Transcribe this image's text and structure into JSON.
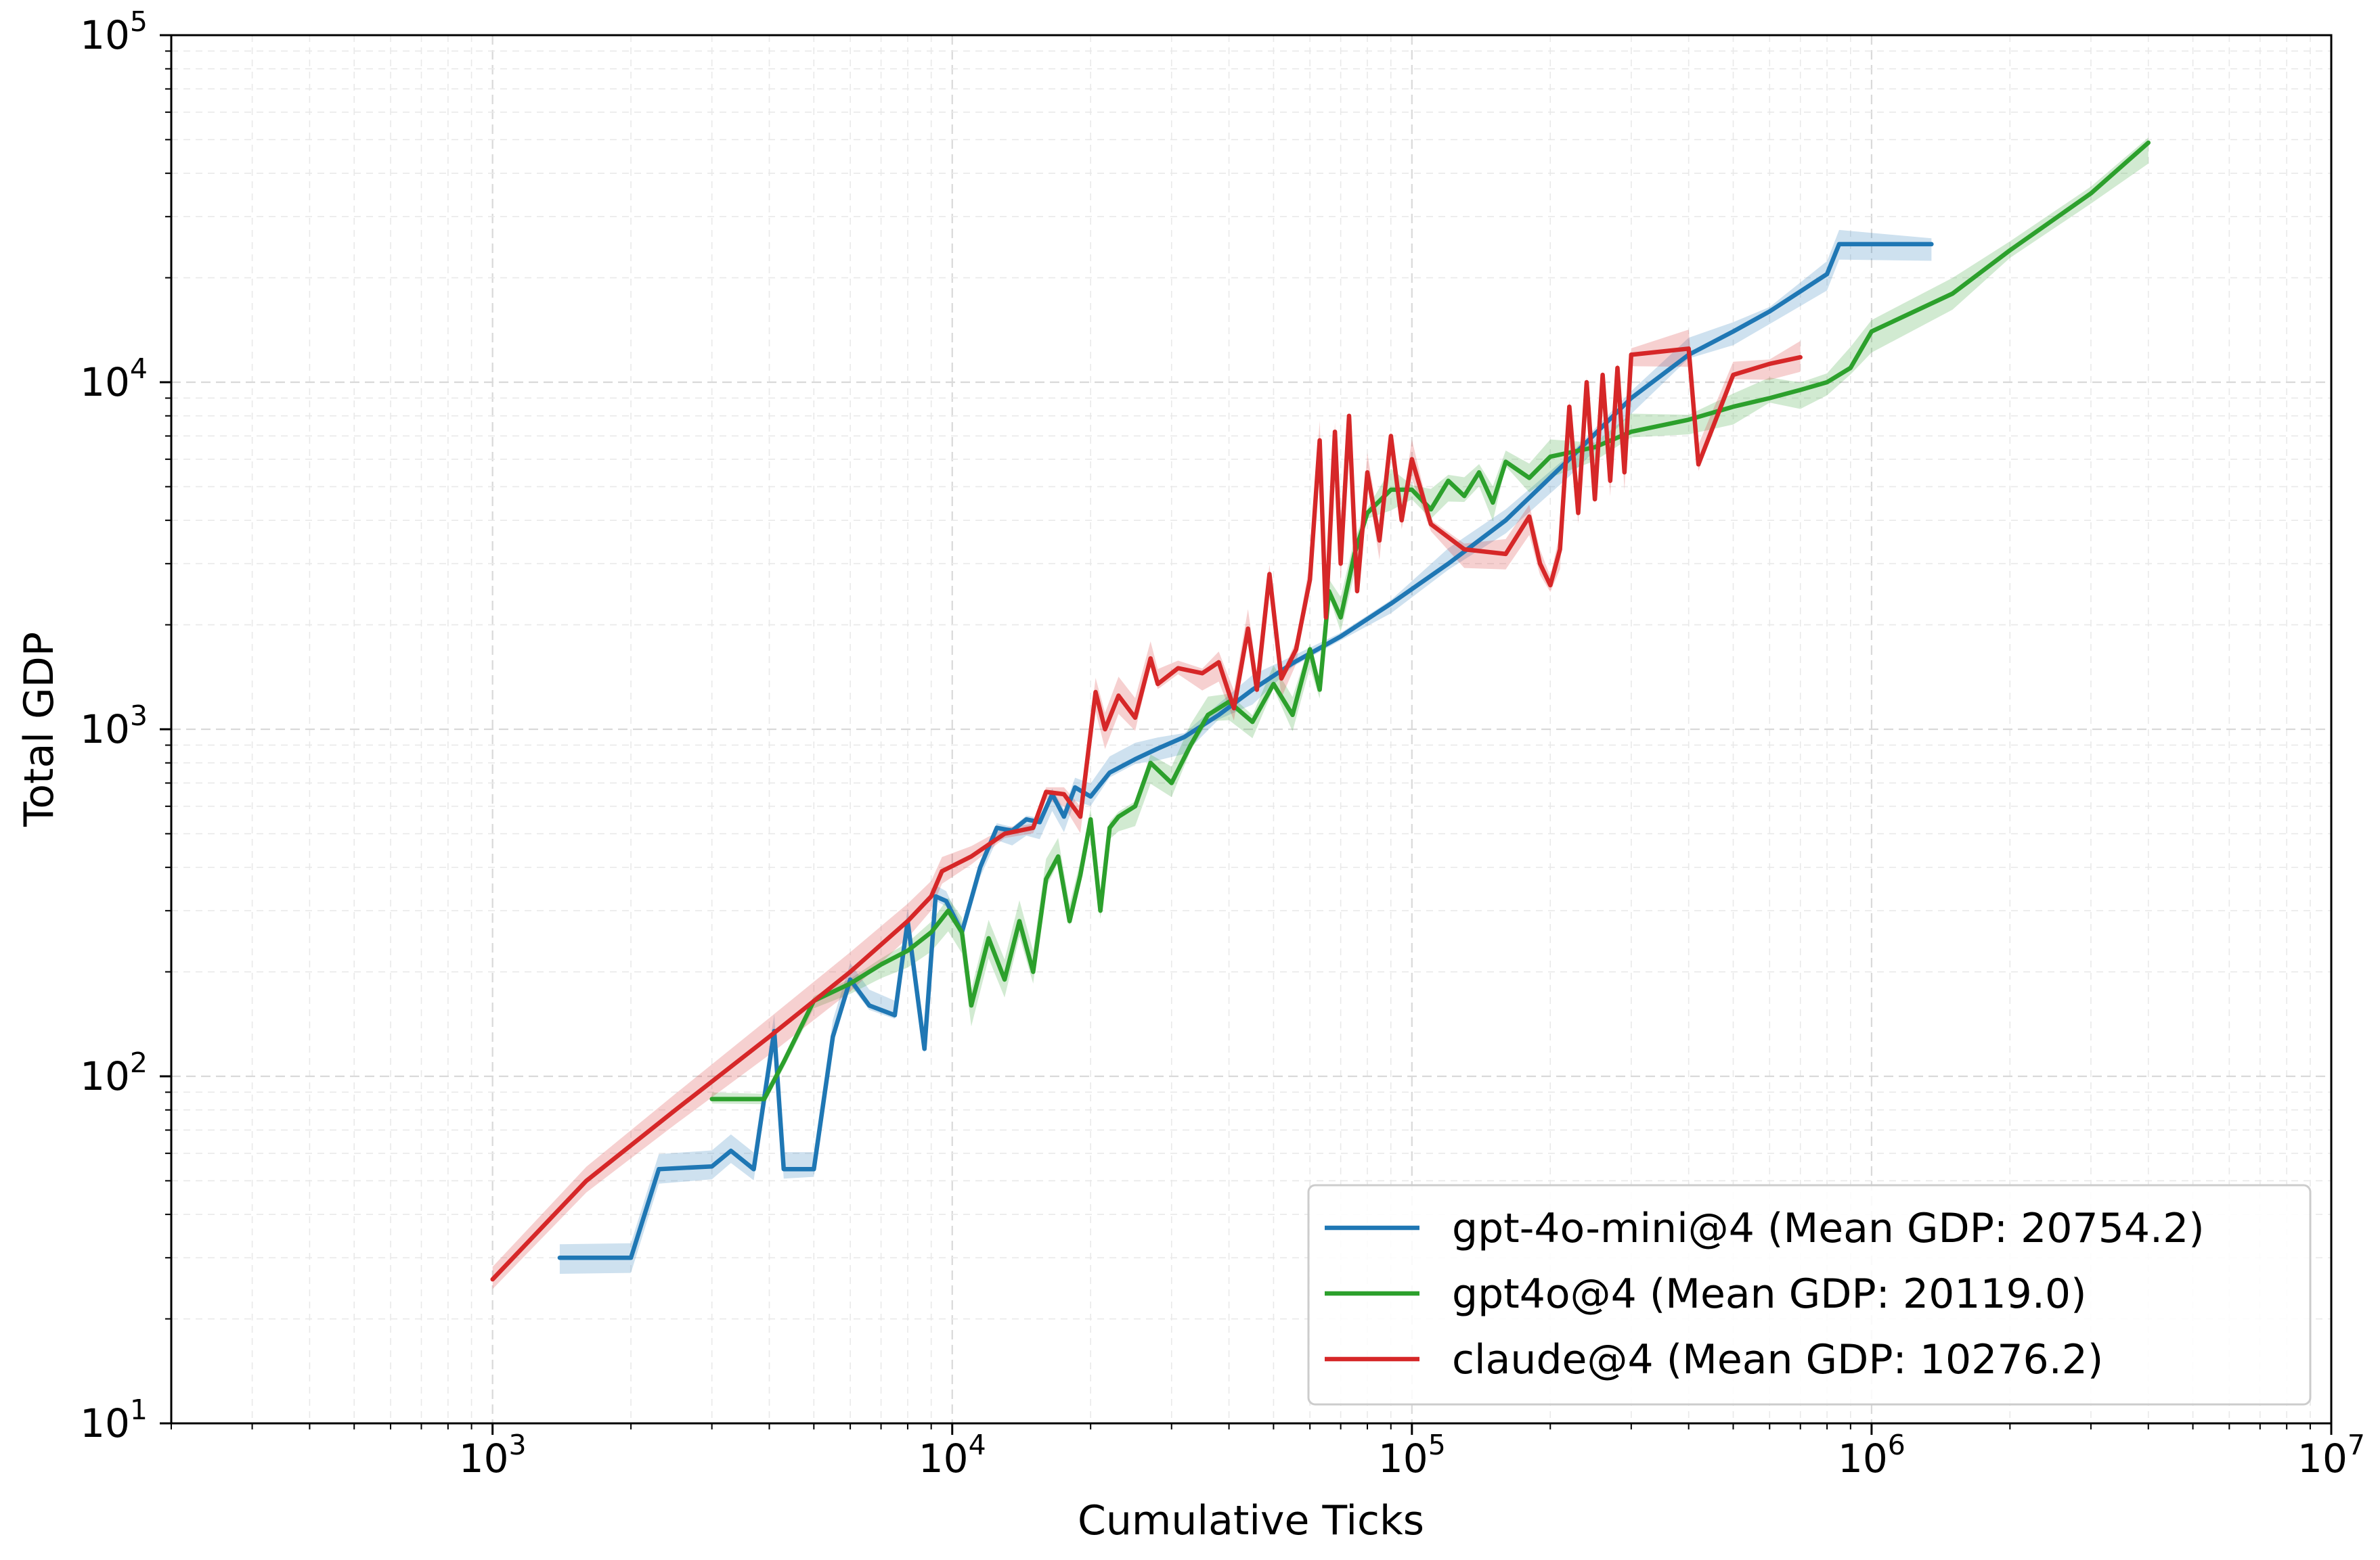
{
  "chart_data": {
    "type": "line",
    "title": "",
    "xlabel": "Cumulative Ticks",
    "ylabel": "Total GDP",
    "xscale": "log",
    "yscale": "log",
    "xlim": [
      200,
      10000000
    ],
    "ylim": [
      10,
      100000
    ],
    "x_ticks": [
      {
        "value": 1000,
        "base": "10",
        "exp": "3"
      },
      {
        "value": 10000,
        "base": "10",
        "exp": "4"
      },
      {
        "value": 100000,
        "base": "10",
        "exp": "5"
      },
      {
        "value": 1000000,
        "base": "10",
        "exp": "6"
      },
      {
        "value": 10000000,
        "base": "10",
        "exp": "7"
      }
    ],
    "y_ticks": [
      {
        "value": 10,
        "base": "10",
        "exp": "1"
      },
      {
        "value": 100,
        "base": "10",
        "exp": "2"
      },
      {
        "value": 1000,
        "base": "10",
        "exp": "3"
      },
      {
        "value": 10000,
        "base": "10",
        "exp": "4"
      },
      {
        "value": 100000,
        "base": "10",
        "exp": "5"
      }
    ],
    "grid": true,
    "legend": {
      "position": "bottom-right"
    },
    "series": [
      {
        "name": "gpt-4o-mini@4 (Mean GDP: 20754.2)",
        "color": "#1f77b4",
        "band_width": 0.12,
        "points": [
          [
            1400,
            30
          ],
          [
            2000,
            30
          ],
          [
            2300,
            54
          ],
          [
            3000,
            55
          ],
          [
            3300,
            61
          ],
          [
            3700,
            54
          ],
          [
            4100,
            135
          ],
          [
            4300,
            54
          ],
          [
            5000,
            54
          ],
          [
            5500,
            130
          ],
          [
            6000,
            190
          ],
          [
            6600,
            160
          ],
          [
            7500,
            150
          ],
          [
            8000,
            280
          ],
          [
            8700,
            120
          ],
          [
            9200,
            330
          ],
          [
            9700,
            320
          ],
          [
            10500,
            260
          ],
          [
            11500,
            400
          ],
          [
            12500,
            520
          ],
          [
            13500,
            510
          ],
          [
            14500,
            550
          ],
          [
            15500,
            540
          ],
          [
            16500,
            650
          ],
          [
            17500,
            560
          ],
          [
            18500,
            680
          ],
          [
            20000,
            640
          ],
          [
            22000,
            750
          ],
          [
            25000,
            820
          ],
          [
            28000,
            880
          ],
          [
            32000,
            950
          ],
          [
            38000,
            1100
          ],
          [
            45000,
            1300
          ],
          [
            55000,
            1550
          ],
          [
            70000,
            1850
          ],
          [
            90000,
            2300
          ],
          [
            120000,
            3000
          ],
          [
            160000,
            4000
          ],
          [
            220000,
            6000
          ],
          [
            300000,
            9000
          ],
          [
            400000,
            12000
          ],
          [
            500000,
            14000
          ],
          [
            600000,
            16000
          ],
          [
            800000,
            20500
          ],
          [
            850000,
            25000
          ],
          [
            1350000,
            25000
          ]
        ]
      },
      {
        "name": "gpt4o@4 (Mean GDP: 20119.0)",
        "color": "#2ca02c",
        "band_width": 0.15,
        "points": [
          [
            3000,
            86
          ],
          [
            3900,
            86
          ],
          [
            4300,
            110
          ],
          [
            5000,
            165
          ],
          [
            6000,
            185
          ],
          [
            7000,
            210
          ],
          [
            8000,
            230
          ],
          [
            9000,
            260
          ],
          [
            9800,
            300
          ],
          [
            10500,
            260
          ],
          [
            11000,
            160
          ],
          [
            12000,
            250
          ],
          [
            13000,
            190
          ],
          [
            14000,
            280
          ],
          [
            15000,
            200
          ],
          [
            16000,
            370
          ],
          [
            17000,
            430
          ],
          [
            18000,
            280
          ],
          [
            19000,
            380
          ],
          [
            20000,
            550
          ],
          [
            21000,
            300
          ],
          [
            22000,
            520
          ],
          [
            23000,
            560
          ],
          [
            25000,
            600
          ],
          [
            27000,
            800
          ],
          [
            30000,
            700
          ],
          [
            33000,
            900
          ],
          [
            36000,
            1100
          ],
          [
            40000,
            1200
          ],
          [
            45000,
            1050
          ],
          [
            50000,
            1350
          ],
          [
            55000,
            1100
          ],
          [
            60000,
            1700
          ],
          [
            63000,
            1300
          ],
          [
            66000,
            2500
          ],
          [
            70000,
            2100
          ],
          [
            75000,
            3200
          ],
          [
            80000,
            4200
          ],
          [
            90000,
            4900
          ],
          [
            100000,
            4900
          ],
          [
            110000,
            4300
          ],
          [
            120000,
            5200
          ],
          [
            130000,
            4700
          ],
          [
            140000,
            5500
          ],
          [
            150000,
            4500
          ],
          [
            160000,
            5900
          ],
          [
            180000,
            5300
          ],
          [
            200000,
            6100
          ],
          [
            250000,
            6500
          ],
          [
            300000,
            7200
          ],
          [
            400000,
            7800
          ],
          [
            500000,
            8500
          ],
          [
            600000,
            9000
          ],
          [
            700000,
            9500
          ],
          [
            800000,
            10000
          ],
          [
            900000,
            11000
          ],
          [
            1000000,
            14000
          ],
          [
            1500000,
            18000
          ],
          [
            2000000,
            24000
          ],
          [
            3000000,
            35000
          ],
          [
            4000000,
            49000
          ]
        ]
      },
      {
        "name": "claude@4 (Mean GDP: 10276.2)",
        "color": "#d62728",
        "band_width": 0.14,
        "points": [
          [
            1000,
            26
          ],
          [
            1600,
            50
          ],
          [
            2500,
            80
          ],
          [
            4000,
            130
          ],
          [
            6000,
            200
          ],
          [
            8000,
            280
          ],
          [
            9000,
            330
          ],
          [
            9500,
            390
          ],
          [
            11000,
            430
          ],
          [
            13000,
            500
          ],
          [
            15000,
            520
          ],
          [
            16000,
            660
          ],
          [
            17500,
            650
          ],
          [
            19000,
            560
          ],
          [
            20500,
            1280
          ],
          [
            21500,
            1000
          ],
          [
            23000,
            1250
          ],
          [
            25000,
            1080
          ],
          [
            27000,
            1600
          ],
          [
            28000,
            1350
          ],
          [
            31000,
            1500
          ],
          [
            35000,
            1450
          ],
          [
            38000,
            1560
          ],
          [
            41000,
            1150
          ],
          [
            44000,
            1950
          ],
          [
            46000,
            1300
          ],
          [
            49000,
            2800
          ],
          [
            52000,
            1400
          ],
          [
            56000,
            1700
          ],
          [
            60000,
            2700
          ],
          [
            63000,
            6800
          ],
          [
            65000,
            2100
          ],
          [
            68000,
            7200
          ],
          [
            70000,
            3000
          ],
          [
            73000,
            8000
          ],
          [
            76000,
            2500
          ],
          [
            80000,
            5500
          ],
          [
            85000,
            3500
          ],
          [
            90000,
            7000
          ],
          [
            95000,
            4000
          ],
          [
            100000,
            6000
          ],
          [
            110000,
            3900
          ],
          [
            130000,
            3300
          ],
          [
            160000,
            3200
          ],
          [
            180000,
            4100
          ],
          [
            190000,
            3000
          ],
          [
            200000,
            2600
          ],
          [
            210000,
            3300
          ],
          [
            220000,
            8500
          ],
          [
            230000,
            4200
          ],
          [
            240000,
            10000
          ],
          [
            250000,
            4600
          ],
          [
            260000,
            10500
          ],
          [
            270000,
            5200
          ],
          [
            280000,
            11000
          ],
          [
            290000,
            5500
          ],
          [
            300000,
            12000
          ],
          [
            400000,
            12500
          ],
          [
            420000,
            5800
          ],
          [
            500000,
            10500
          ],
          [
            600000,
            11300
          ],
          [
            700000,
            11800
          ]
        ]
      }
    ]
  }
}
